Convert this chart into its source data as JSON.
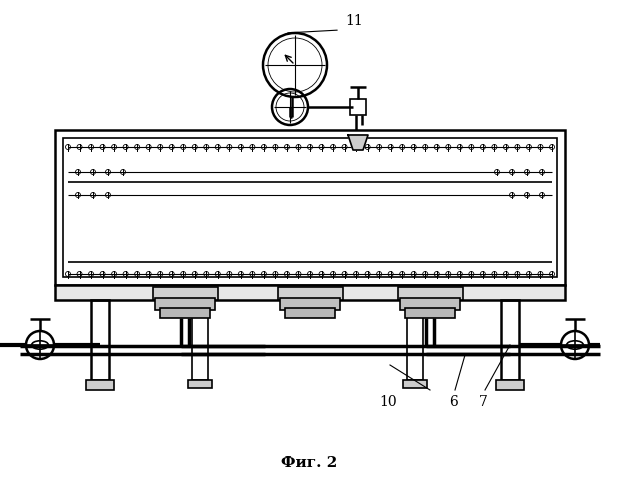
{
  "title": "Фиг. 2",
  "label_11": "11",
  "label_10": "10",
  "label_6": "6",
  "label_7": "7",
  "bg_color": "#ffffff",
  "line_color": "#000000",
  "line_width": 1.2,
  "fig_width": 6.18,
  "fig_height": 5.0,
  "dpi": 100
}
